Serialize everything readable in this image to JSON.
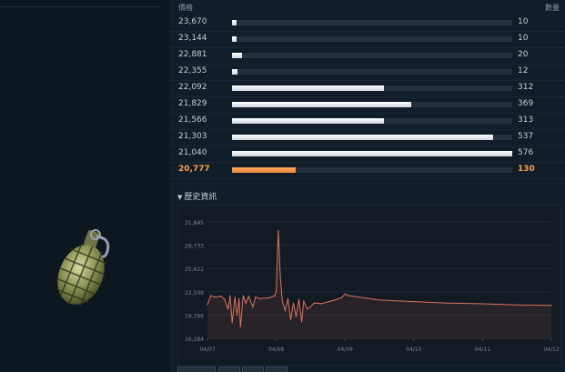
{
  "order_book": {
    "price_header": "價格",
    "qty_header": "數量",
    "max_qty": 576,
    "rows": [
      {
        "price": "23,670",
        "qty": "10",
        "qty_value": 10,
        "highlight": false
      },
      {
        "price": "23,144",
        "qty": "10",
        "qty_value": 10,
        "highlight": false
      },
      {
        "price": "22,881",
        "qty": "20",
        "qty_value": 20,
        "highlight": false
      },
      {
        "price": "22,355",
        "qty": "12",
        "qty_value": 12,
        "highlight": false
      },
      {
        "price": "22,092",
        "qty": "312",
        "qty_value": 312,
        "highlight": false
      },
      {
        "price": "21,829",
        "qty": "369",
        "qty_value": 369,
        "highlight": false
      },
      {
        "price": "21,566",
        "qty": "313",
        "qty_value": 313,
        "highlight": false
      },
      {
        "price": "21,303",
        "qty": "537",
        "qty_value": 537,
        "highlight": false
      },
      {
        "price": "21,040",
        "qty": "576",
        "qty_value": 576,
        "highlight": false
      },
      {
        "price": "20,777",
        "qty": "130",
        "qty_value": 130,
        "highlight": true
      }
    ]
  },
  "history": {
    "toggle_label": "歷史資訊",
    "toggle_icon": "triangle-down-icon"
  },
  "item": {
    "icon": "grenade-icon"
  },
  "colors": {
    "accent_orange": "#f0a050",
    "line": "#e2735c",
    "bar_fill": "#e8ecf0"
  },
  "chart_data": {
    "type": "line",
    "title": "",
    "xlabel": "",
    "ylabel": "",
    "grid": true,
    "x_ticks": [
      "04/07",
      "04/08",
      "04/09",
      "04/10",
      "04/11",
      "04/12"
    ],
    "x_range": [
      0,
      5
    ],
    "y_ticks": [
      "31,845",
      "28,733",
      "25,621",
      "22,508",
      "19,396",
      "16,284"
    ],
    "y_range": [
      16284,
      31845
    ],
    "series": [
      {
        "name": "",
        "points": [
          [
            0.0,
            20800
          ],
          [
            0.05,
            22000
          ],
          [
            0.1,
            21800
          ],
          [
            0.2,
            21900
          ],
          [
            0.25,
            21500
          ],
          [
            0.3,
            20200
          ],
          [
            0.33,
            22000
          ],
          [
            0.36,
            18400
          ],
          [
            0.4,
            21800
          ],
          [
            0.43,
            19400
          ],
          [
            0.46,
            21600
          ],
          [
            0.48,
            17800
          ],
          [
            0.52,
            22000
          ],
          [
            0.56,
            21000
          ],
          [
            0.6,
            21900
          ],
          [
            0.66,
            20500
          ],
          [
            0.7,
            21800
          ],
          [
            0.76,
            21600
          ],
          [
            0.9,
            21700
          ],
          [
            0.98,
            22000
          ],
          [
            1.0,
            22600
          ],
          [
            1.03,
            30700
          ],
          [
            1.06,
            24500
          ],
          [
            1.09,
            21200
          ],
          [
            1.13,
            20000
          ],
          [
            1.17,
            21600
          ],
          [
            1.21,
            18800
          ],
          [
            1.25,
            21000
          ],
          [
            1.29,
            19200
          ],
          [
            1.33,
            21500
          ],
          [
            1.37,
            18500
          ],
          [
            1.4,
            21300
          ],
          [
            1.45,
            20200
          ],
          [
            1.5,
            20500
          ],
          [
            1.55,
            21000
          ],
          [
            1.6,
            21000
          ],
          [
            1.65,
            20900
          ],
          [
            1.85,
            21400
          ],
          [
            1.95,
            21700
          ],
          [
            2.0,
            22200
          ],
          [
            2.05,
            22000
          ],
          [
            2.5,
            21400
          ],
          [
            3.0,
            21200
          ],
          [
            3.5,
            21000
          ],
          [
            4.0,
            20900
          ],
          [
            4.5,
            20750
          ],
          [
            5.0,
            20700
          ]
        ]
      }
    ]
  }
}
